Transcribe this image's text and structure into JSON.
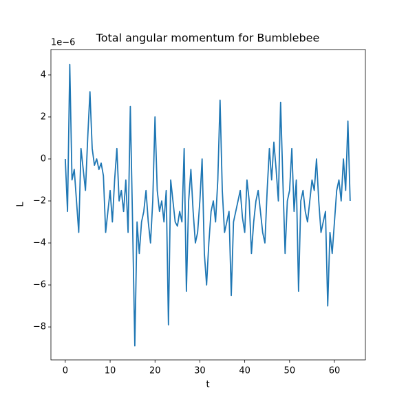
{
  "chart_data": {
    "type": "line",
    "title": "Total angular momentum for Bumblebee",
    "xlabel": "t",
    "ylabel": "L",
    "y_offset_label": "1e−6",
    "x": [
      0,
      0.5,
      1,
      1.5,
      2,
      2.5,
      3,
      3.5,
      4,
      4.5,
      5,
      5.5,
      6,
      6.5,
      7,
      7.5,
      8,
      8.5,
      9,
      9.5,
      10,
      10.5,
      11,
      11.5,
      12,
      12.5,
      13,
      13.5,
      14,
      14.5,
      15,
      15.5,
      16,
      16.5,
      17,
      17.5,
      18,
      18.5,
      19,
      19.5,
      20,
      20.5,
      21,
      21.5,
      22,
      22.5,
      23,
      23.5,
      24,
      24.5,
      25,
      25.5,
      26,
      26.5,
      27,
      27.5,
      28,
      28.5,
      29,
      29.5,
      30,
      30.5,
      31,
      31.5,
      32,
      32.5,
      33,
      33.5,
      34,
      34.5,
      35,
      35.5,
      36,
      36.5,
      37,
      37.5,
      38,
      38.5,
      39,
      39.5,
      40,
      40.5,
      41,
      41.5,
      42,
      42.5,
      43,
      43.5,
      44,
      44.5,
      45,
      45.5,
      46,
      46.5,
      47,
      47.5,
      48,
      48.5,
      49,
      49.5,
      50,
      50.5,
      51,
      51.5,
      52,
      52.5,
      53,
      53.5,
      54,
      54.5,
      55,
      55.5,
      56,
      56.5,
      57,
      57.5,
      58,
      58.5,
      59,
      59.5,
      60,
      60.5,
      61,
      61.5,
      62,
      62.5,
      63,
      63.5
    ],
    "series": [
      {
        "name": "L",
        "color": "#1f77b4",
        "values": [
          0,
          -2.5,
          4.5,
          -1,
          -0.5,
          -2,
          -3.5,
          0.5,
          -0.5,
          -1.5,
          1,
          3.2,
          0.5,
          -0.3,
          0,
          -0.5,
          -0.2,
          -0.8,
          -3.5,
          -2.5,
          -1.5,
          -3,
          -1,
          0.5,
          -2,
          -1.5,
          -2.5,
          -1,
          -3.5,
          2.5,
          -3,
          -8.9,
          -3,
          -4.5,
          -3,
          -2.5,
          -1.5,
          -3,
          -4,
          -2,
          2,
          -1.5,
          -2.5,
          -2,
          -3,
          -1.5,
          -7.9,
          -1,
          -2,
          -3,
          -3.2,
          -2.5,
          -3,
          0.5,
          -6.3,
          -2,
          -0.5,
          -2.5,
          -4,
          -3.5,
          -2,
          0,
          -4.5,
          -6,
          -4,
          -2.5,
          -2,
          -3,
          -1,
          2.8,
          -1.5,
          -3.5,
          -3,
          -2.5,
          -6.5,
          -3,
          -2.5,
          -2,
          -1.5,
          -2.8,
          -3.5,
          -1,
          -2,
          -4.5,
          -3,
          -2,
          -1.5,
          -2.5,
          -3.5,
          -4,
          -1.5,
          0.5,
          -1,
          0.8,
          -0.5,
          -2,
          2.7,
          -1,
          -4.5,
          -2,
          -1.5,
          0.5,
          -2.5,
          -1,
          -6.3,
          -2,
          -1.5,
          -2.5,
          -3,
          -2,
          -1,
          -1.5,
          0,
          -2,
          -3.5,
          -3,
          -2.5,
          -7,
          -3.5,
          -4.5,
          -3,
          -1.5,
          -1,
          -2,
          0,
          -1.5,
          1.8,
          -2
        ]
      }
    ],
    "xlim": [
      -3.2,
      66.9
    ],
    "xticks": [
      0,
      10,
      20,
      30,
      40,
      50,
      60
    ],
    "ylim": [
      -9.57,
      5.21
    ],
    "yticks": [
      {
        "value": -8,
        "label": "−8"
      },
      {
        "value": -6,
        "label": "−6"
      },
      {
        "value": -4,
        "label": "−4"
      },
      {
        "value": -2,
        "label": "−2"
      },
      0,
      2,
      4
    ]
  }
}
